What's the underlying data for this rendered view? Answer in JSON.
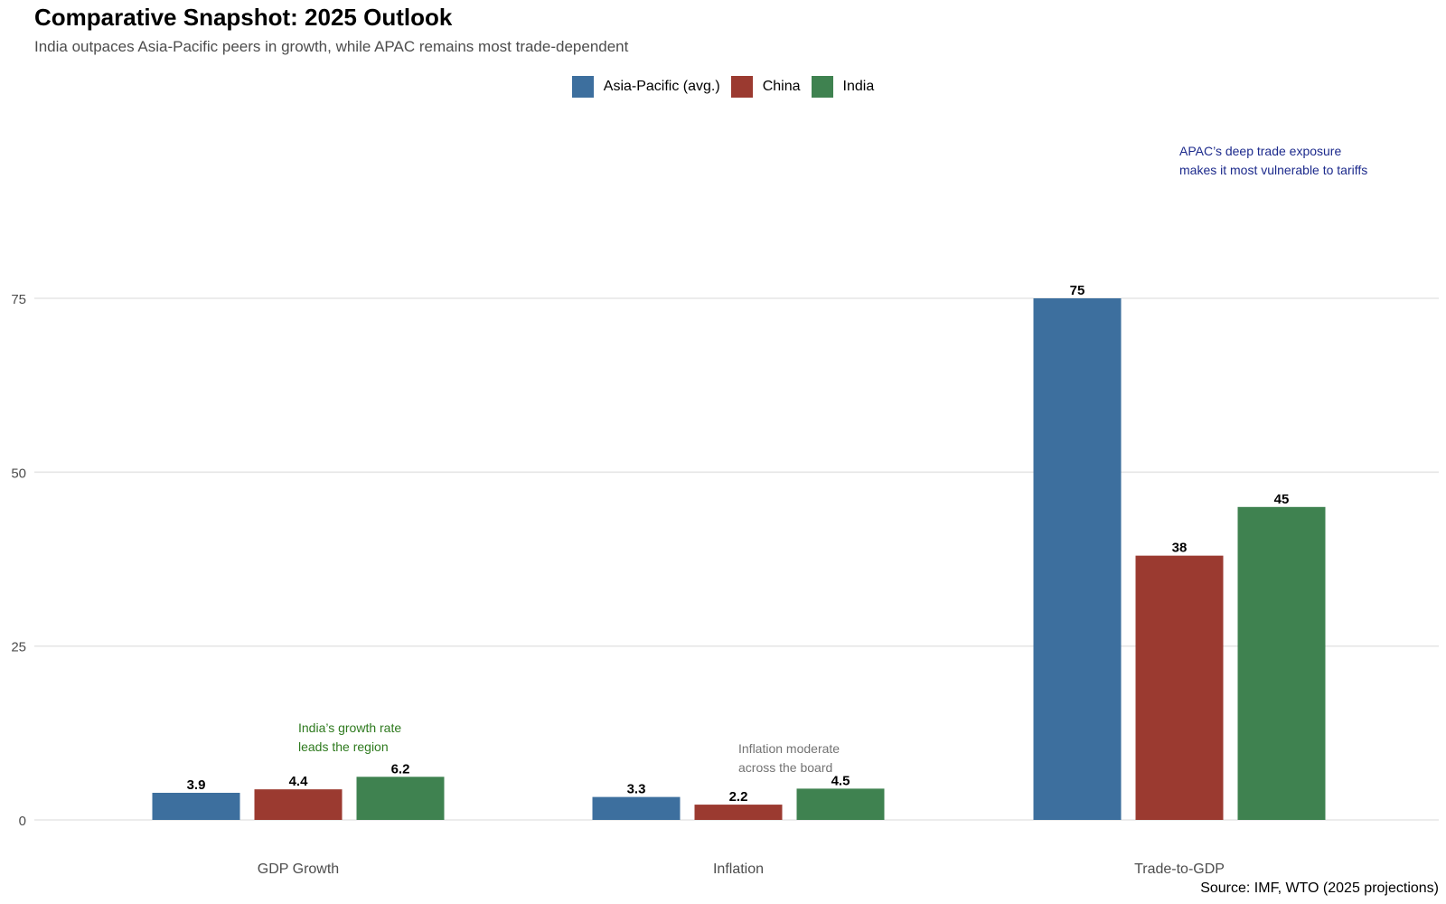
{
  "chart_data": {
    "type": "bar",
    "title": "Comparative Snapshot: 2025 Outlook",
    "subtitle": "India outpaces Asia-Pacific peers in growth, while APAC remains most trade-dependent",
    "categories": [
      "GDP Growth",
      "Inflation",
      "Trade-to-GDP"
    ],
    "series": [
      {
        "name": "Asia-Pacific (avg.)",
        "color": "#3d6f9e",
        "values": [
          3.9,
          3.3,
          75
        ]
      },
      {
        "name": "China",
        "color": "#9b3a30",
        "values": [
          4.4,
          2.2,
          38
        ]
      },
      {
        "name": "India",
        "color": "#3f8250",
        "values": [
          6.2,
          4.5,
          45
        ]
      }
    ],
    "xlabel": "",
    "ylabel": "",
    "yticks": [
      0,
      25,
      50,
      75
    ],
    "ylim": [
      0,
      100
    ],
    "grid": true,
    "legend_position": "top-center",
    "annotations": [
      {
        "lines": [
          "India’s growth rate",
          "leads the region"
        ],
        "category": "GDP Growth",
        "color": "#2e7a1e"
      },
      {
        "lines": [
          "Inflation moderate",
          "across the board"
        ],
        "category": "Inflation",
        "color": "#737373"
      },
      {
        "lines": [
          "APAC’s deep trade exposure",
          "makes it most vulnerable to tariffs"
        ],
        "category": "Trade-to-GDP",
        "color": "#1c2a8c"
      }
    ],
    "source": "Source: IMF, WTO (2025 projections)"
  }
}
